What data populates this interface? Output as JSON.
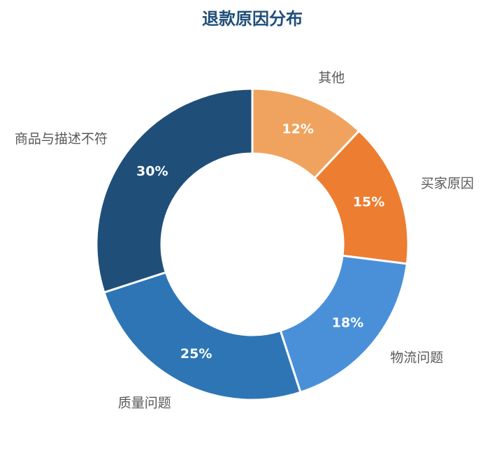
{
  "chart_data": {
    "type": "donut",
    "title": "退款原因分布",
    "categories": [
      "其他",
      "买家原因",
      "物流问题",
      "质量问题",
      "商品与描述不符"
    ],
    "values": [
      12,
      15,
      18,
      25,
      30
    ],
    "value_labels": [
      "12%",
      "15%",
      "18%",
      "25%",
      "30%"
    ],
    "colors": [
      "#f0a35e",
      "#ed7d31",
      "#4a90d9",
      "#2e75b6",
      "#1f4e79"
    ]
  }
}
